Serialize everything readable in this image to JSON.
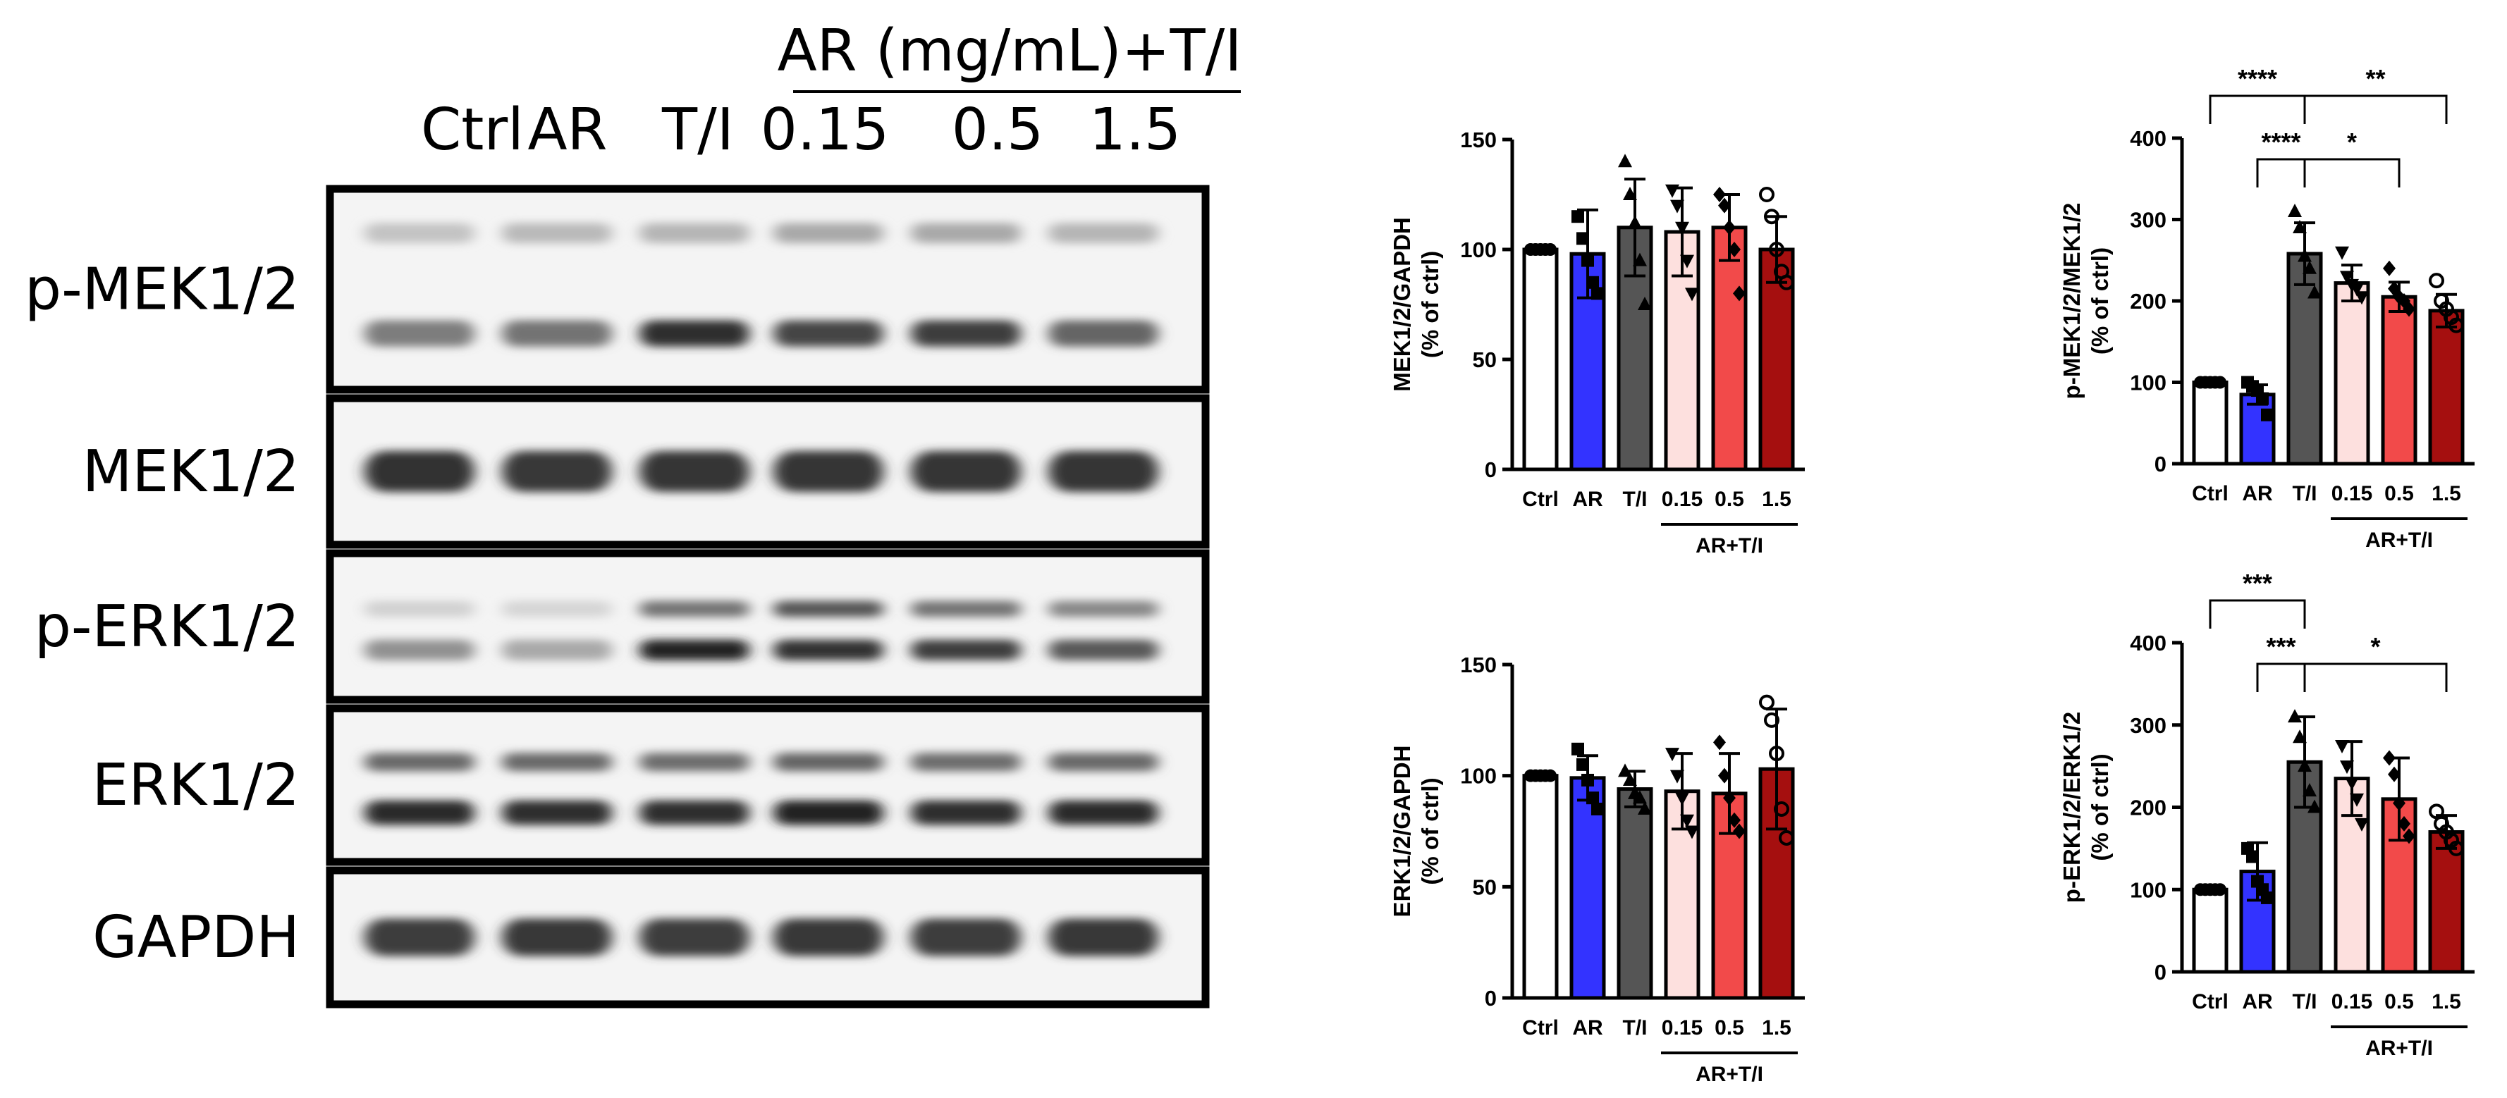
{
  "blot": {
    "group_header": "AR (mg/mL)+T/I",
    "lanes": [
      "Ctrl",
      "AR",
      "T/I",
      "0.15",
      "0.5",
      "1.5"
    ],
    "rows": [
      {
        "label": "p-MEK1/2",
        "bands": [
          {
            "intensities": [
              0.15,
              0.2,
              0.22,
              0.28,
              0.28,
              0.22
            ],
            "pos": 0.22,
            "thick": 0.1
          },
          {
            "intensities": [
              0.5,
              0.55,
              0.9,
              0.78,
              0.82,
              0.62
            ],
            "pos": 0.72,
            "thick": 0.13
          }
        ]
      },
      {
        "label": "MEK1/2",
        "bands": [
          {
            "intensities": [
              0.88,
              0.84,
              0.86,
              0.86,
              0.86,
              0.86
            ],
            "pos": 0.5,
            "thick": 0.28
          }
        ]
      },
      {
        "label": "p-ERK1/2",
        "bands": [
          {
            "intensities": [
              0.08,
              0.06,
              0.55,
              0.7,
              0.55,
              0.45
            ],
            "pos": 0.38,
            "thick": 0.11
          },
          {
            "intensities": [
              0.4,
              0.28,
              0.95,
              0.88,
              0.82,
              0.68
            ],
            "pos": 0.66,
            "thick": 0.14
          }
        ]
      },
      {
        "label": "ERK1/2",
        "bands": [
          {
            "intensities": [
              0.6,
              0.6,
              0.58,
              0.62,
              0.58,
              0.6
            ],
            "pos": 0.35,
            "thick": 0.12
          },
          {
            "intensities": [
              0.92,
              0.9,
              0.9,
              0.95,
              0.9,
              0.92
            ],
            "pos": 0.68,
            "thick": 0.16
          }
        ]
      },
      {
        "label": "GAPDH",
        "bands": [
          {
            "intensities": [
              0.82,
              0.85,
              0.82,
              0.85,
              0.82,
              0.85
            ],
            "pos": 0.5,
            "thick": 0.28
          }
        ]
      }
    ]
  },
  "chart_data": [
    {
      "type": "bar",
      "ylabel": "MEK1/2/GAPDH (% of ctrl)",
      "ylim": [
        0,
        150
      ],
      "yticks": [
        0,
        50,
        100,
        150
      ],
      "categories": [
        "Ctrl",
        "AR",
        "T/I",
        "0.15",
        "0.5",
        "1.5"
      ],
      "group_label": "AR+T/I",
      "values": [
        100,
        98,
        110,
        108,
        110,
        100
      ],
      "errors": [
        1,
        20,
        22,
        20,
        15,
        15
      ],
      "points": [
        [
          100,
          100,
          100,
          100,
          100
        ],
        [
          115,
          105,
          95,
          85,
          80
        ],
        [
          140,
          125,
          112,
          95,
          75
        ],
        [
          127,
          120,
          110,
          95,
          80
        ],
        [
          125,
          120,
          110,
          100,
          80
        ],
        [
          125,
          115,
          100,
          90,
          85
        ]
      ],
      "markers": [
        "circle",
        "square",
        "triangle",
        "triangle-down",
        "diamond",
        "open-circle"
      ],
      "colors": [
        "#ffffff",
        "#3333ff",
        "#555555",
        "#fde0de",
        "#f24a4a",
        "#a50f0f"
      ],
      "significance": []
    },
    {
      "type": "bar",
      "ylabel": "p-MEK1/2/MEK1/2 (% of ctrl)",
      "ylim": [
        0,
        400
      ],
      "yticks": [
        0,
        100,
        200,
        300,
        400
      ],
      "categories": [
        "Ctrl",
        "AR",
        "T/I",
        "0.15",
        "0.5",
        "1.5"
      ],
      "group_label": "AR+T/I",
      "values": [
        100,
        85,
        258,
        222,
        205,
        188
      ],
      "errors": [
        1,
        12,
        38,
        22,
        18,
        20
      ],
      "points": [
        [
          100,
          100,
          100,
          100,
          100
        ],
        [
          100,
          95,
          90,
          80,
          60
        ],
        [
          310,
          290,
          255,
          240,
          210
        ],
        [
          260,
          230,
          220,
          215,
          205
        ],
        [
          240,
          215,
          205,
          200,
          190
        ],
        [
          225,
          200,
          190,
          180,
          170
        ]
      ],
      "markers": [
        "circle",
        "square",
        "triangle",
        "triangle-down",
        "diamond",
        "open-circle"
      ],
      "colors": [
        "#ffffff",
        "#3333ff",
        "#555555",
        "#fde0de",
        "#f24a4a",
        "#a50f0f"
      ],
      "significance": [
        {
          "from": 0,
          "to": 2,
          "level": 0,
          "label": "****"
        },
        {
          "from": 1,
          "to": 2,
          "level": 1,
          "label": "****"
        },
        {
          "from": 2,
          "to": 5,
          "level": 0,
          "label": "**"
        },
        {
          "from": 2,
          "to": 4,
          "level": 1,
          "label": "*"
        }
      ]
    },
    {
      "type": "bar",
      "ylabel": "ERK1/2/GAPDH (% of ctrl)",
      "ylim": [
        0,
        150
      ],
      "yticks": [
        0,
        50,
        100,
        150
      ],
      "categories": [
        "Ctrl",
        "AR",
        "T/I",
        "0.15",
        "0.5",
        "1.5"
      ],
      "group_label": "AR+T/I",
      "values": [
        100,
        99,
        94,
        93,
        92,
        103
      ],
      "errors": [
        1,
        10,
        8,
        17,
        18,
        27
      ],
      "points": [
        [
          100,
          100,
          100,
          100,
          100
        ],
        [
          112,
          105,
          98,
          90,
          85
        ],
        [
          102,
          98,
          92,
          90,
          85
        ],
        [
          110,
          100,
          90,
          80,
          75
        ],
        [
          115,
          100,
          90,
          80,
          75
        ],
        [
          133,
          125,
          110,
          85,
          72
        ]
      ],
      "markers": [
        "circle",
        "square",
        "triangle",
        "triangle-down",
        "diamond",
        "open-circle"
      ],
      "colors": [
        "#ffffff",
        "#3333ff",
        "#555555",
        "#fde0de",
        "#f24a4a",
        "#a50f0f"
      ],
      "significance": []
    },
    {
      "type": "bar",
      "ylabel": "p-ERK1/2/ERK1/2 (% of ctrl)",
      "ylim": [
        0,
        400
      ],
      "yticks": [
        0,
        100,
        200,
        300,
        400
      ],
      "categories": [
        "Ctrl",
        "AR",
        "T/I",
        "0.15",
        "0.5",
        "1.5"
      ],
      "group_label": "AR+T/I",
      "values": [
        100,
        122,
        255,
        235,
        210,
        170
      ],
      "errors": [
        1,
        35,
        55,
        45,
        50,
        20
      ],
      "points": [
        [
          100,
          100,
          100,
          100,
          100
        ],
        [
          150,
          140,
          110,
          100,
          90
        ],
        [
          310,
          285,
          250,
          220,
          200
        ],
        [
          275,
          250,
          230,
          210,
          180
        ],
        [
          260,
          240,
          205,
          180,
          165
        ],
        [
          195,
          180,
          170,
          160,
          150
        ]
      ],
      "markers": [
        "circle",
        "square",
        "triangle",
        "triangle-down",
        "diamond",
        "open-circle"
      ],
      "colors": [
        "#ffffff",
        "#3333ff",
        "#555555",
        "#fde0de",
        "#f24a4a",
        "#a50f0f"
      ],
      "significance": [
        {
          "from": 0,
          "to": 2,
          "level": 0,
          "label": "***"
        },
        {
          "from": 1,
          "to": 2,
          "level": 1,
          "label": "***"
        },
        {
          "from": 2,
          "to": 5,
          "level": 1,
          "label": "*"
        }
      ]
    }
  ]
}
